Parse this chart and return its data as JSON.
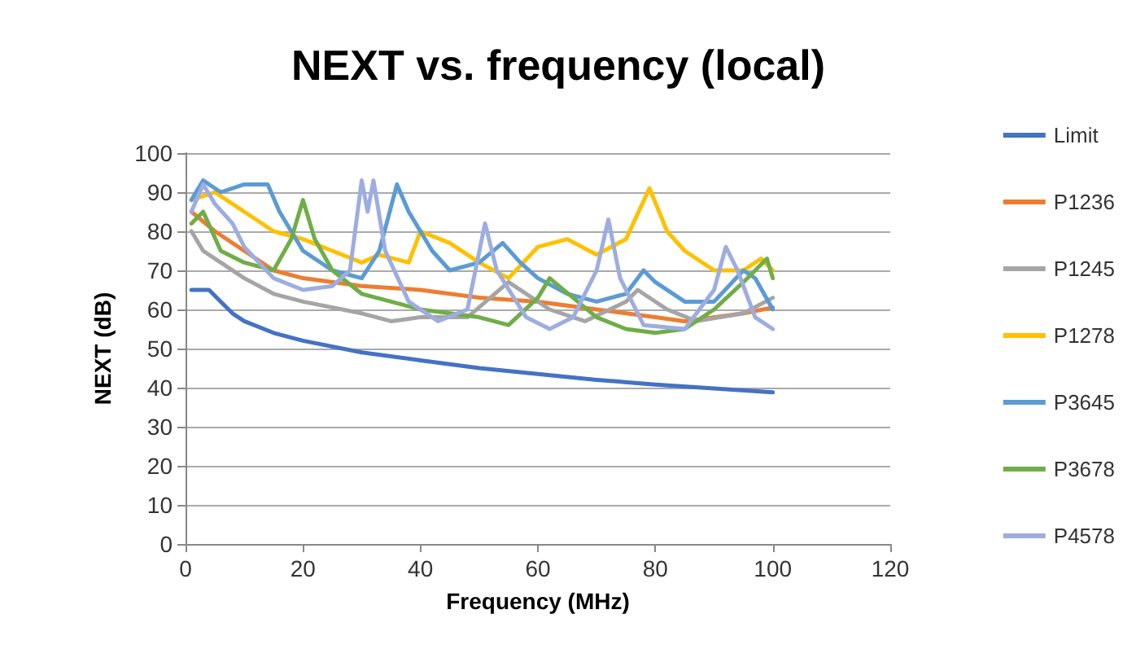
{
  "chart_data": {
    "type": "line",
    "title": "NEXT vs. frequency (local)",
    "xlabel": "Frequency (MHz)",
    "ylabel": "NEXT (dB)",
    "xlim": [
      0,
      120
    ],
    "xticks": [
      0,
      20,
      40,
      60,
      80,
      100,
      120
    ],
    "ylim": [
      0,
      100
    ],
    "yticks": [
      0,
      10,
      20,
      30,
      40,
      50,
      60,
      70,
      80,
      90,
      100
    ],
    "grid": "y",
    "legend": "right",
    "marker": "none",
    "line_style": "solid",
    "series": [
      {
        "name": "Limit",
        "color": "#4472c4",
        "x": [
          1,
          4,
          6,
          8,
          10,
          15,
          20,
          30,
          40,
          50,
          60,
          70,
          80,
          90,
          100
        ],
        "values": [
          65,
          65,
          62,
          59,
          57,
          54,
          52,
          49,
          47,
          45,
          43.5,
          42,
          40.8,
          39.8,
          38.8
        ]
      },
      {
        "name": "P1236",
        "color": "#ed7d31",
        "x": [
          1,
          5,
          10,
          15,
          20,
          30,
          40,
          50,
          60,
          70,
          80,
          85,
          95,
          100
        ],
        "values": [
          85,
          80,
          75,
          70,
          68,
          66,
          65,
          63,
          62,
          60,
          58,
          57,
          59,
          60.5
        ]
      },
      {
        "name": "P1245",
        "color": "#a5a5a5",
        "x": [
          1,
          3,
          6,
          10,
          15,
          20,
          30,
          35,
          40,
          48,
          55,
          62,
          68,
          75,
          77,
          82,
          87,
          95,
          100
        ],
        "values": [
          80,
          75,
          72,
          68,
          64,
          62,
          59,
          57,
          58,
          58,
          67,
          60,
          57,
          62,
          65,
          60,
          57,
          59,
          63
        ]
      },
      {
        "name": "P1278",
        "color": "#ffc000",
        "x": [
          1,
          5,
          10,
          15,
          20,
          25,
          30,
          33,
          38,
          40,
          45,
          50,
          55,
          60,
          65,
          70,
          75,
          79,
          82,
          85,
          90,
          95,
          98,
          100
        ],
        "values": [
          88,
          90,
          85,
          80,
          78,
          75,
          72,
          74,
          72,
          80,
          77,
          72,
          68,
          76,
          78,
          74,
          78,
          91,
          80,
          75,
          70,
          70,
          73,
          70
        ]
      },
      {
        "name": "P3645",
        "color": "#5b9bd5",
        "x": [
          1,
          3,
          6,
          10,
          14,
          16,
          20,
          25,
          30,
          33,
          36,
          38,
          42,
          45,
          50,
          54,
          57,
          60,
          65,
          70,
          75,
          78,
          80,
          85,
          90,
          95,
          97,
          100
        ],
        "values": [
          88,
          93,
          90,
          92,
          92,
          85,
          75,
          70,
          68,
          75,
          92,
          85,
          75,
          70,
          72,
          77,
          72,
          68,
          64,
          62,
          64,
          70,
          67,
          62,
          62,
          70,
          68,
          60
        ]
      },
      {
        "name": "P3678",
        "color": "#70ad47",
        "x": [
          1,
          3,
          6,
          10,
          15,
          18,
          20,
          22,
          25,
          30,
          35,
          40,
          50,
          55,
          60,
          62,
          66,
          70,
          75,
          80,
          85,
          90,
          95,
          99,
          100
        ],
        "values": [
          82,
          85,
          75,
          72,
          70,
          78,
          88,
          78,
          70,
          64,
          62,
          60,
          58,
          56,
          63,
          68,
          63,
          58,
          55,
          54,
          55,
          60,
          67,
          73,
          68
        ]
      },
      {
        "name": "P4578",
        "color": "#9dade0",
        "x": [
          1,
          3,
          5,
          8,
          10,
          15,
          20,
          25,
          28,
          30,
          31,
          32,
          34,
          38,
          43,
          48,
          51,
          53,
          58,
          62,
          66,
          70,
          72,
          74,
          78,
          85,
          90,
          92,
          94,
          97,
          100
        ],
        "values": [
          85,
          92,
          87,
          82,
          76,
          68,
          65,
          66,
          70,
          93,
          85,
          93,
          75,
          62,
          57,
          60,
          82,
          70,
          58,
          55,
          58,
          70,
          83,
          68,
          56,
          55,
          65,
          76,
          70,
          58,
          55
        ]
      }
    ]
  }
}
